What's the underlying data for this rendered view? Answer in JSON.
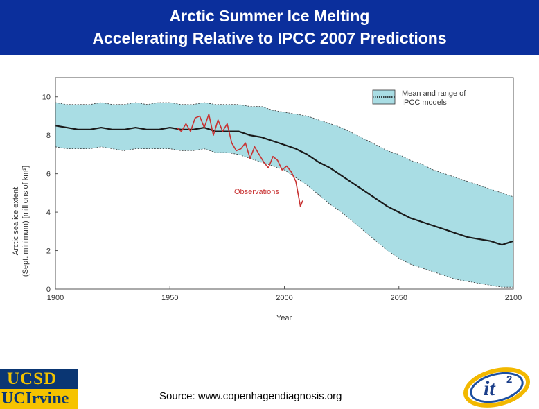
{
  "slide": {
    "title_line1": "Arctic Summer Ice Melting",
    "title_line2": "Accelerating Relative to IPCC 2007 Predictions",
    "source": "Source: www.copenhagendiagnosis.org",
    "logo_ucsd": "UCSD",
    "logo_uci": "UCIrvine",
    "logo_it": "it",
    "logo_it_sup": "2"
  },
  "colors": {
    "banner": "#0b2f9c",
    "band_fill": "#a9dde4",
    "mean_line": "#1a1a1a",
    "observations": "#c83232"
  },
  "chart_data": {
    "type": "line",
    "title": "",
    "xlabel": "Year",
    "ylabel_line1": "Arctic sea ice extent",
    "ylabel_line2": "(Sept. minimum) [millions of km²]",
    "xlim": [
      1900,
      2100
    ],
    "ylim": [
      0,
      11
    ],
    "x_ticks": [
      1900,
      1950,
      2000,
      2050,
      2100
    ],
    "y_ticks": [
      0,
      2,
      4,
      6,
      8,
      10
    ],
    "legend": {
      "label_line1": "Mean and range of",
      "label_line2": "IPCC models",
      "placement": "top-right"
    },
    "annotation": "Observations",
    "series": [
      {
        "name": "IPCC model mean",
        "x": [
          1900,
          1905,
          1910,
          1915,
          1920,
          1925,
          1930,
          1935,
          1940,
          1945,
          1950,
          1955,
          1960,
          1965,
          1970,
          1975,
          1980,
          1985,
          1990,
          1995,
          2000,
          2005,
          2010,
          2015,
          2020,
          2025,
          2030,
          2035,
          2040,
          2045,
          2050,
          2055,
          2060,
          2065,
          2070,
          2075,
          2080,
          2085,
          2090,
          2095,
          2100
        ],
        "values": [
          8.5,
          8.4,
          8.3,
          8.3,
          8.4,
          8.3,
          8.3,
          8.4,
          8.3,
          8.3,
          8.4,
          8.3,
          8.3,
          8.4,
          8.2,
          8.2,
          8.2,
          8.0,
          7.9,
          7.7,
          7.5,
          7.3,
          7.0,
          6.6,
          6.3,
          5.9,
          5.5,
          5.1,
          4.7,
          4.3,
          4.0,
          3.7,
          3.5,
          3.3,
          3.1,
          2.9,
          2.7,
          2.6,
          2.5,
          2.3,
          2.5
        ]
      },
      {
        "name": "IPCC model range (upper)",
        "x": [
          1900,
          1905,
          1910,
          1915,
          1920,
          1925,
          1930,
          1935,
          1940,
          1945,
          1950,
          1955,
          1960,
          1965,
          1970,
          1975,
          1980,
          1985,
          1990,
          1995,
          2000,
          2005,
          2010,
          2015,
          2020,
          2025,
          2030,
          2035,
          2040,
          2045,
          2050,
          2055,
          2060,
          2065,
          2070,
          2075,
          2080,
          2085,
          2090,
          2095,
          2100
        ],
        "values": [
          9.7,
          9.6,
          9.6,
          9.6,
          9.7,
          9.6,
          9.6,
          9.7,
          9.6,
          9.7,
          9.7,
          9.6,
          9.6,
          9.7,
          9.6,
          9.6,
          9.6,
          9.5,
          9.5,
          9.3,
          9.2,
          9.1,
          9.0,
          8.8,
          8.6,
          8.4,
          8.1,
          7.8,
          7.5,
          7.2,
          7.0,
          6.7,
          6.5,
          6.2,
          6.0,
          5.8,
          5.6,
          5.4,
          5.2,
          5.0,
          4.8
        ]
      },
      {
        "name": "IPCC model range (lower)",
        "x": [
          1900,
          1905,
          1910,
          1915,
          1920,
          1925,
          1930,
          1935,
          1940,
          1945,
          1950,
          1955,
          1960,
          1965,
          1970,
          1975,
          1980,
          1985,
          1990,
          1995,
          2000,
          2005,
          2010,
          2015,
          2020,
          2025,
          2030,
          2035,
          2040,
          2045,
          2050,
          2055,
          2060,
          2065,
          2070,
          2075,
          2080,
          2085,
          2090,
          2095,
          2100
        ],
        "values": [
          7.4,
          7.3,
          7.3,
          7.3,
          7.4,
          7.3,
          7.2,
          7.3,
          7.3,
          7.3,
          7.3,
          7.2,
          7.2,
          7.3,
          7.1,
          7.1,
          7.0,
          6.8,
          6.6,
          6.4,
          6.2,
          5.8,
          5.4,
          4.9,
          4.4,
          4.0,
          3.5,
          3.0,
          2.5,
          2.0,
          1.6,
          1.3,
          1.1,
          0.9,
          0.7,
          0.5,
          0.4,
          0.3,
          0.2,
          0.1,
          0.1
        ]
      },
      {
        "name": "Observations",
        "x": [
          1953,
          1955,
          1957,
          1959,
          1961,
          1963,
          1965,
          1967,
          1969,
          1971,
          1973,
          1975,
          1977,
          1979,
          1981,
          1983,
          1985,
          1987,
          1989,
          1991,
          1993,
          1995,
          1997,
          1999,
          2001,
          2003,
          2005,
          2007,
          2008
        ],
        "values": [
          8.4,
          8.2,
          8.6,
          8.2,
          8.9,
          9.0,
          8.4,
          9.1,
          8.0,
          8.8,
          8.2,
          8.6,
          7.6,
          7.2,
          7.3,
          7.6,
          6.8,
          7.4,
          7.0,
          6.6,
          6.3,
          6.9,
          6.7,
          6.2,
          6.4,
          6.1,
          5.6,
          4.3,
          4.6
        ]
      }
    ]
  }
}
